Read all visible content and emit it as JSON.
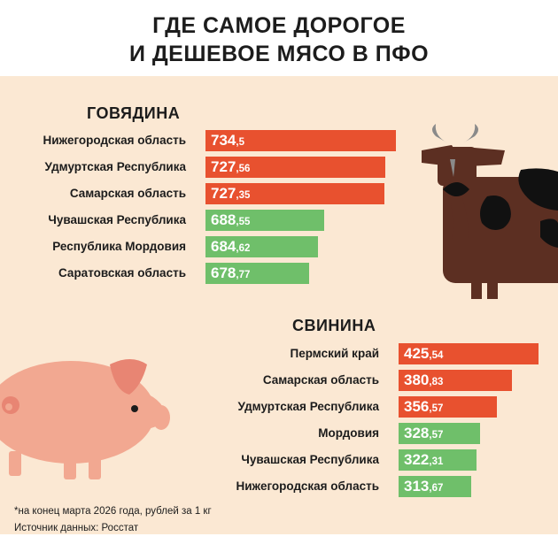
{
  "title": {
    "line1": "ГДЕ САМОЕ ДОРОГОЕ",
    "line2": "И ДЕШЕВОЕ МЯСО В ПФО"
  },
  "colors": {
    "background_band": "#fbe8d3",
    "expensive_bar": "#e8512f",
    "cheap_bar": "#6fbf6a",
    "cow_body": "#5c2f22",
    "pig_body": "#f2a891"
  },
  "icons": [
    "cow-icon",
    "pig-icon"
  ],
  "chart_data": [
    {
      "type": "bar",
      "orientation": "horizontal",
      "title": "ГОВЯДИНА",
      "categories": [
        "Нижегородская область",
        "Удмуртская Республика",
        "Самарская область",
        "Чувашская Республика",
        "Республика Мордовия",
        "Саратовская область"
      ],
      "values": [
        734.5,
        727.56,
        727.35,
        688.55,
        684.62,
        678.77
      ],
      "value_labels": [
        {
          "int": "734",
          "frac": ",5"
        },
        {
          "int": "727",
          "frac": ",56"
        },
        {
          "int": "727",
          "frac": ",35"
        },
        {
          "int": "688",
          "frac": ",55"
        },
        {
          "int": "684",
          "frac": ",62"
        },
        {
          "int": "678",
          "frac": ",77"
        }
      ],
      "bar_colors": [
        "#e8512f",
        "#e8512f",
        "#e8512f",
        "#6fbf6a",
        "#6fbf6a",
        "#6fbf6a"
      ]
    },
    {
      "type": "bar",
      "orientation": "horizontal",
      "title": "СВИНИНА",
      "categories": [
        "Пермский край",
        "Самарская область",
        "Удмуртская Республика",
        "Мордовия",
        "Чувашская Республика",
        "Нижегородская область"
      ],
      "values": [
        425.54,
        380.83,
        356.57,
        328.57,
        322.31,
        313.67
      ],
      "value_labels": [
        {
          "int": "425",
          "frac": ",54"
        },
        {
          "int": "380",
          "frac": ",83"
        },
        {
          "int": "356",
          "frac": ",57"
        },
        {
          "int": "328",
          "frac": ",57"
        },
        {
          "int": "322",
          "frac": ",31"
        },
        {
          "int": "313",
          "frac": ",67"
        }
      ],
      "bar_colors": [
        "#e8512f",
        "#e8512f",
        "#e8512f",
        "#6fbf6a",
        "#6fbf6a",
        "#6fbf6a"
      ]
    }
  ],
  "footnote": {
    "line1": "*на конец марта 2026 года, рублей за 1 кг",
    "line2": "Источник данных: Росстат"
  }
}
